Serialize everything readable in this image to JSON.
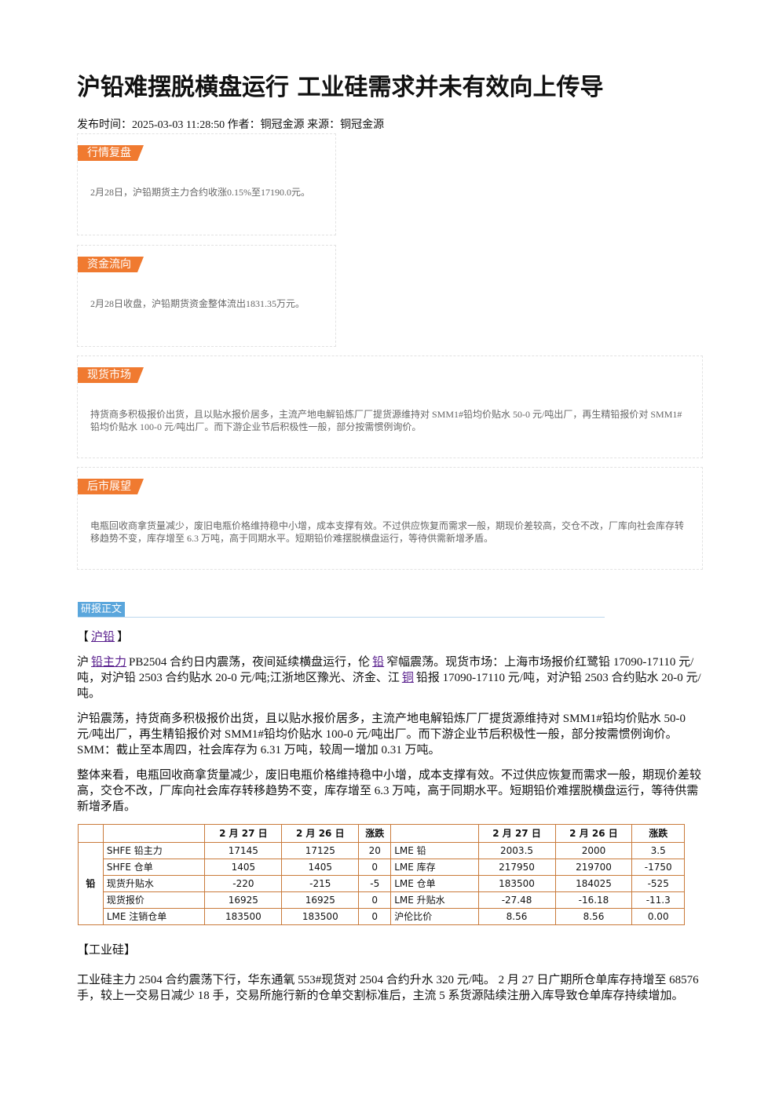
{
  "title": "沪铅难摆脱横盘运行 工业硅需求并未有效向上传导",
  "meta": "发布时间：2025-03-03 11:28:50 作者：铜冠金源 来源：铜冠金源",
  "boxes": [
    {
      "label": "行情复盘",
      "text": "2月28日，沪铅期货主力合约收涨0.15%至17190.0元。"
    },
    {
      "label": "资金流向",
      "text": "2月28日收盘，沪铅期货资金整体流出1831.35万元。"
    },
    {
      "label": "现货市场",
      "text": "持货商多积极报价出货，且以贴水报价居多，主流产地电解铅炼厂厂提货源维持对 SMM1#铅均价贴水 50-0 元/吨出厂，再生精铅报价对 SMM1#铅均价贴水 100-0 元/吨出厂。而下游企业节后积极性一般，部分按需惯例询价。"
    },
    {
      "label": "后市展望",
      "text": "电瓶回收商拿货量减少，废旧电瓶价格维持稳中小增，成本支撑有效。不过供应恢复而需求一般，期现价差较高，交仓不改，厂库向社会库存转移趋势不变，库存增至 6.3 万吨，高于同期水平。短期铅价难摆脱横盘运行，等待供需新增矛盾。"
    }
  ],
  "section_label": "研报正文",
  "lead_heading": [
    {
      "text": "【"
    },
    {
      "link": "沪铅"
    },
    {
      "text": "】"
    }
  ],
  "lead_paragraphs": [
    [
      {
        "text": "沪"
      },
      {
        "link": "铅主力"
      },
      {
        "text": "PB2504 合约日内震荡，夜间延续横盘运行，伦"
      },
      {
        "link": "铅"
      },
      {
        "text": "窄幅震荡。现货市场：上海市场报价红鹭铅 17090-17110 元/吨，对沪铅 2503 合约贴水 20-0 元/吨;江浙地区豫光、济金、江"
      },
      {
        "link": "铜"
      },
      {
        "text": "铅报 17090-17110 元/吨，对沪铅 2503 合约贴水 20-0 元/吨。"
      }
    ],
    [
      {
        "text": "沪铅震荡，持货商多积极报价出货，且以贴水报价居多，主流产地电解铅炼厂厂提货源维持对 SMM1#铅均价贴水 50-0 元/吨出厂，再生精铅报价对 SMM1#铅均价贴水 100-0 元/吨出厂。而下游企业节后积极性一般，部分按需惯例询价。SMM：截止至本周四，社会库存为 6.31 万吨，较周一增加 0.31 万吨。"
      }
    ],
    [
      {
        "text": "整体来看，电瓶回收商拿货量减少，废旧电瓶价格维持稳中小增，成本支撑有效。不过供应恢复而需求一般，期现价差较高，交仓不改，厂库向社会库存转移趋势不变，库存增至 6.3 万吨，高于同期水平。短期铅价难摆脱横盘运行，等待供需新增矛盾。"
      }
    ]
  ],
  "table": {
    "group": "铅",
    "header": [
      "2 月 27 日",
      "2 月 26 日",
      "涨跌",
      "2 月 27 日",
      "2 月 26 日",
      "涨跌"
    ],
    "rows": [
      [
        "SHFE 铅主力",
        "17145",
        "17125",
        "20",
        "LME 铅",
        "2003.5",
        "2000",
        "3.5"
      ],
      [
        "SHFE 仓单",
        "1405",
        "1405",
        "0",
        "LME 库存",
        "217950",
        "219700",
        "-1750"
      ],
      [
        "现货升贴水",
        "-220",
        "-215",
        "-5",
        "LME 仓单",
        "183500",
        "184025",
        "-525"
      ],
      [
        "现货报价",
        "16925",
        "16925",
        "0",
        "LME 升贴水",
        "-27.48",
        "-16.18",
        "-11.3"
      ],
      [
        "LME 注销仓单",
        "183500",
        "183500",
        "0",
        "沪伦比价",
        "8.56",
        "8.56",
        "0.00"
      ]
    ]
  },
  "section2": {
    "heading": "【工业硅】",
    "paragraphs": [
      [
        {
          "text": "工业硅主力 2504 合约震荡下行，华东通氧 553#现货对 2504 合约升水 320 元/吨。 2 月 27 日广期所仓单库存持增至 68576 手，较上一交易日减少 18 手，交易所施行新的仓单交割标准后，主流 5 系货源陆续注册入库导致仓单库存持续增加。"
        }
      ]
    ]
  }
}
